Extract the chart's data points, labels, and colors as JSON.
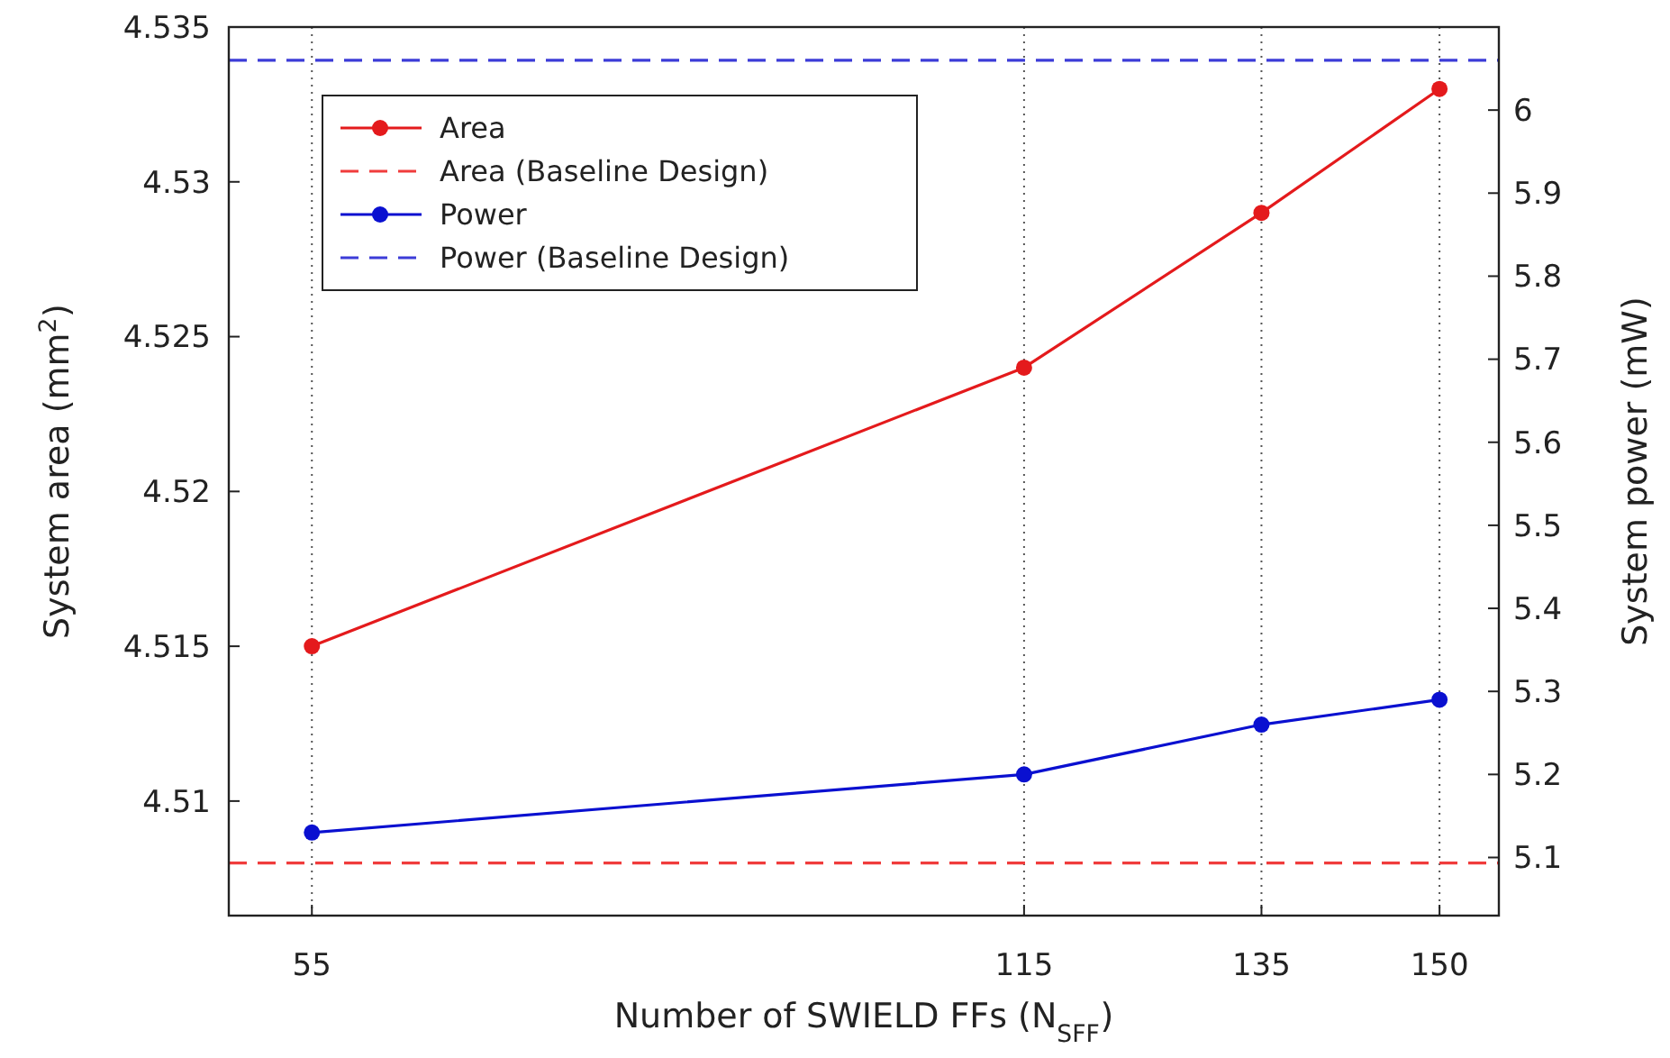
{
  "chart_data": {
    "type": "line",
    "xlabel": "Number of SWIELD FFs (N$_{SFF}$)",
    "ylabel": "System area (mm$^{2}$)",
    "y2label": "System power (mW)",
    "x": [
      55,
      115,
      135,
      150
    ],
    "xlim": [
      48,
      155
    ],
    "xticks": [
      55,
      115,
      135,
      150
    ],
    "ylim": [
      4.5063,
      4.535
    ],
    "yticks": [
      4.51,
      4.515,
      4.52,
      4.525,
      4.53,
      4.535
    ],
    "y2lim": [
      5.03,
      6.1
    ],
    "y2ticks": [
      5.1,
      5.2,
      5.3,
      5.4,
      5.5,
      5.6,
      5.7,
      5.8,
      5.9,
      6
    ],
    "grid": "x",
    "legend": "top left",
    "series": [
      {
        "name": "Area",
        "color": "#e41a1c",
        "values": [
          4.515,
          4.524,
          4.529,
          4.533
        ],
        "marker": "circle",
        "line_style": "solid"
      },
      {
        "name": "Power",
        "color": "#0a10d0",
        "values": [
          5.13,
          5.2,
          5.26,
          5.29
        ],
        "marker": "circle",
        "line_style": "solid",
        "axis": "y2"
      }
    ],
    "ref_lines": [
      {
        "axis": "y",
        "value": 4.508,
        "label": "Area (Baseline Design)",
        "color": "#f03c3c",
        "line_style": "dashed"
      },
      {
        "axis": "y2",
        "value": 6.06,
        "label": "Power (Baseline Design)",
        "color": "#3c3cd8",
        "line_style": "dashed"
      }
    ]
  }
}
